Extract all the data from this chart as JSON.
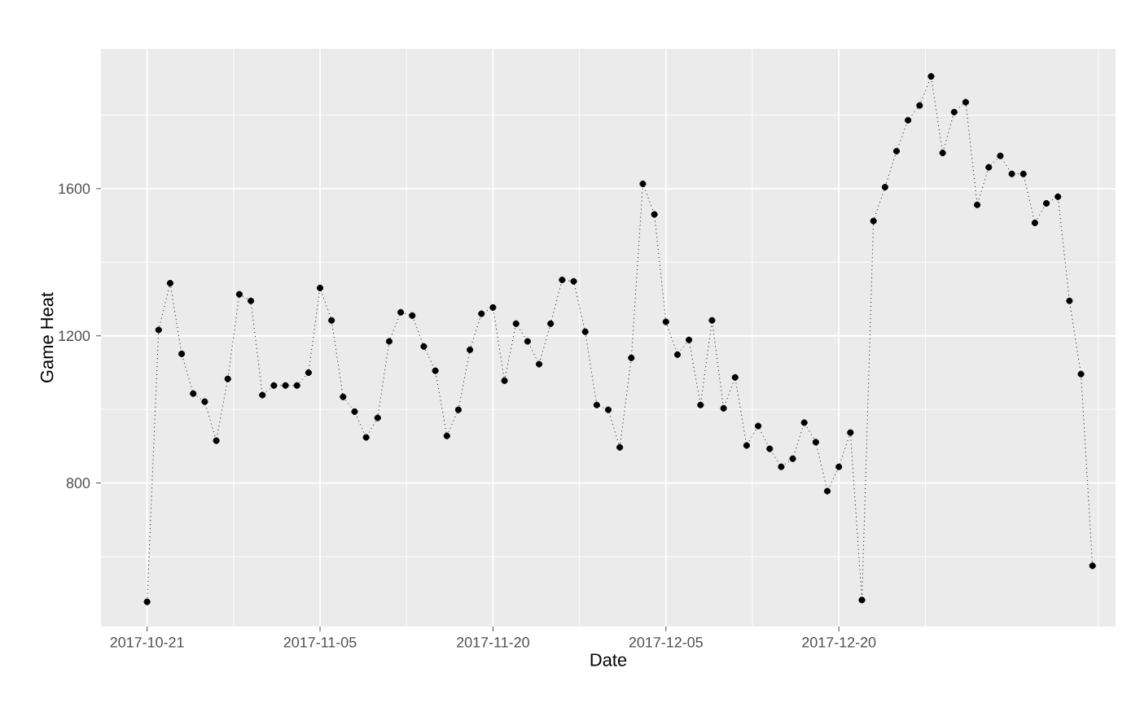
{
  "chart_data": {
    "type": "line",
    "xlabel": "Date",
    "ylabel": "Game Heat",
    "x": [
      "2017-10-21",
      "2017-10-22",
      "2017-10-23",
      "2017-10-24",
      "2017-10-25",
      "2017-10-26",
      "2017-10-27",
      "2017-10-28",
      "2017-10-29",
      "2017-10-30",
      "2017-10-31",
      "2017-11-01",
      "2017-11-02",
      "2017-11-03",
      "2017-11-04",
      "2017-11-05",
      "2017-11-06",
      "2017-11-07",
      "2017-11-08",
      "2017-11-09",
      "2017-11-10",
      "2017-11-11",
      "2017-11-12",
      "2017-11-13",
      "2017-11-14",
      "2017-11-15",
      "2017-11-16",
      "2017-11-17",
      "2017-11-18",
      "2017-11-19",
      "2017-11-20",
      "2017-11-21",
      "2017-11-22",
      "2017-11-23",
      "2017-11-24",
      "2017-11-25",
      "2017-11-26",
      "2017-11-27",
      "2017-11-28",
      "2017-11-29",
      "2017-11-30",
      "2017-12-01",
      "2017-12-02",
      "2017-12-03",
      "2017-12-04",
      "2017-12-05",
      "2017-12-06",
      "2017-12-07",
      "2017-12-08",
      "2017-12-09",
      "2017-12-10",
      "2017-12-11",
      "2017-12-12",
      "2017-12-13",
      "2017-12-14",
      "2017-12-15",
      "2017-12-16",
      "2017-12-17",
      "2017-12-18",
      "2017-12-19",
      "2017-12-20",
      "2017-12-21",
      "2017-12-22",
      "2017-12-23",
      "2017-12-24",
      "2017-12-25",
      "2017-12-26",
      "2017-12-27",
      "2017-12-28",
      "2017-12-29",
      "2017-12-30",
      "2017-12-31",
      "2018-01-01",
      "2018-01-02",
      "2018-01-03",
      "2018-01-04",
      "2018-01-05",
      "2018-01-06",
      "2018-01-07",
      "2018-01-08",
      "2018-01-09",
      "2018-01-10",
      "2018-01-11"
    ],
    "series": [
      {
        "color": "#000000",
        "values": [
          477,
          1216,
          1343,
          1151,
          1043,
          1021,
          915,
          1083,
          1313,
          1295,
          1039,
          1065,
          1065,
          1065,
          1100,
          1330,
          1242,
          1034,
          994,
          924,
          977,
          1185,
          1264,
          1255,
          1171,
          1105,
          928,
          999,
          1162,
          1260,
          1277,
          1078,
          1233,
          1185,
          1123,
          1233,
          1352,
          1348,
          1211,
          1012,
          999,
          897,
          1140,
          1613,
          1530,
          1238,
          1149,
          1189,
          1012,
          1242,
          1003,
          1087,
          902,
          955,
          893,
          844,
          866,
          964,
          911,
          778,
          844,
          937,
          482,
          1512,
          1604,
          1702,
          1786,
          1826,
          1905,
          1697,
          1808,
          1835,
          1556,
          1658,
          1689,
          1640,
          1640,
          1507,
          1560,
          1578,
          1295,
          1096,
          575
        ]
      }
    ],
    "xlim": [
      "2017-10-17",
      "2018-01-13"
    ],
    "xticks": [
      "2017-10-21",
      "2017-11-05",
      "2017-11-20",
      "2017-12-05",
      "2017-12-20"
    ],
    "ylim": [
      410,
      1980
    ],
    "yticks": [
      800,
      1200,
      1600
    ],
    "grid": true,
    "marker": "circle",
    "line_style": "dotted"
  }
}
